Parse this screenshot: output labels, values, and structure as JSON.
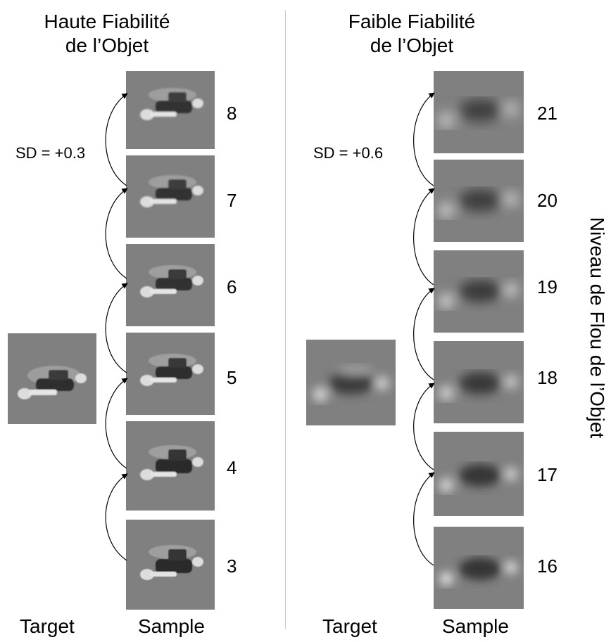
{
  "left_panel": {
    "title_line1": "Haute Fiabilité",
    "title_line2": "de l’Objet",
    "sd_label": "SD = +0.3",
    "levels": [
      "8",
      "7",
      "6",
      "5",
      "4",
      "3"
    ],
    "target_label": "Target",
    "sample_label": "Sample"
  },
  "right_panel": {
    "title_line1": "Faible Fiabilité",
    "title_line2": "de l’Objet",
    "sd_label": "SD = +0.6",
    "levels": [
      "21",
      "20",
      "19",
      "18",
      "17",
      "16"
    ],
    "target_label": "Target",
    "sample_label": "Sample"
  },
  "axis_label": "Niveau de Flou de l’Objet",
  "colors": {
    "tile_background": "#808080",
    "object_dark": "#2a2a2a",
    "object_light": "#e0e0e0",
    "divider": "#c8c8c8"
  }
}
